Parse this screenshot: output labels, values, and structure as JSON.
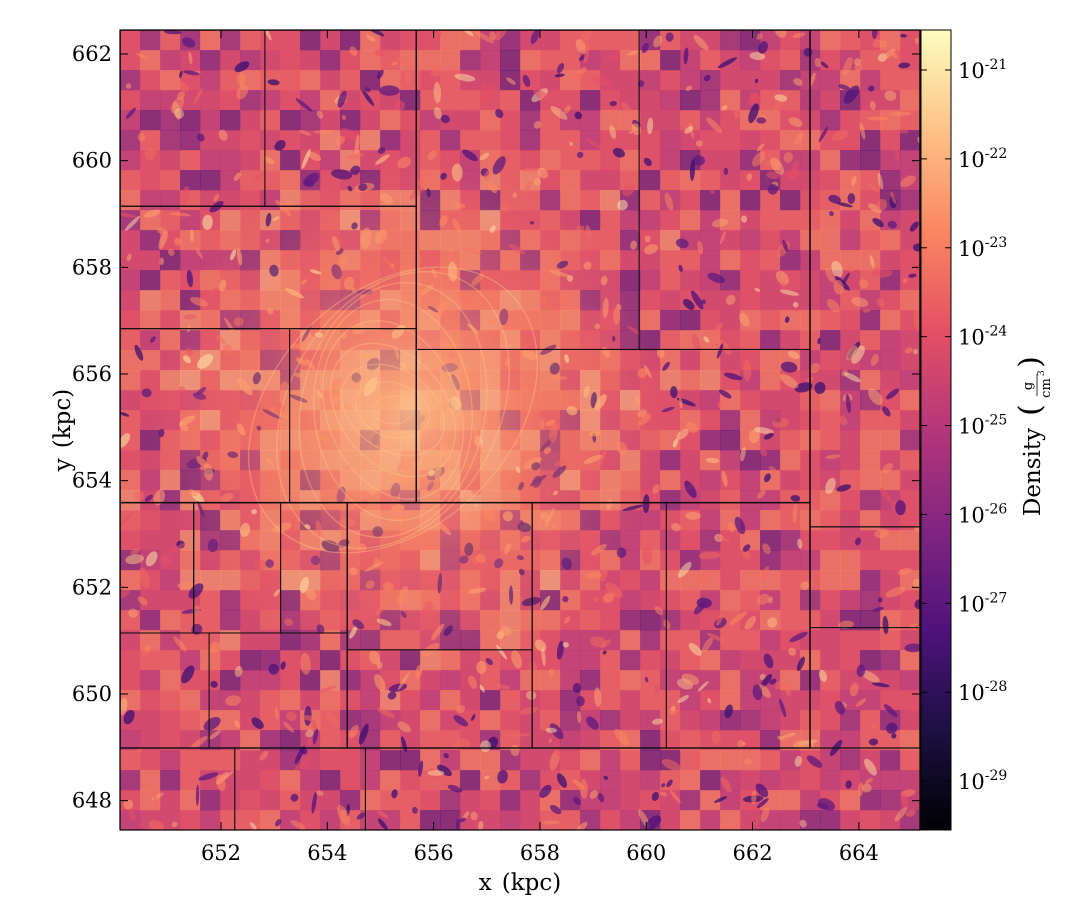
{
  "chart_data": {
    "type": "heatmap",
    "x": {
      "label": "x",
      "unit": "(kpc)",
      "range": [
        650.1,
        665.15
      ],
      "ticks": [
        652,
        654,
        656,
        658,
        660,
        662,
        664
      ]
    },
    "y": {
      "label": "y",
      "unit": "(kpc)",
      "range": [
        647.45,
        662.45
      ],
      "ticks": [
        648,
        650,
        652,
        654,
        656,
        658,
        660,
        662
      ]
    },
    "colorbar": {
      "label": "Density",
      "unit_numerator": "g",
      "unit_denominator": "cm",
      "unit_denominator_exponent": "3",
      "scale": "log",
      "range_exponent": [
        -29.55,
        -20.55
      ],
      "tick_base": "10",
      "tick_exponents": [
        "-21",
        "-22",
        "-23",
        "-24",
        "-25",
        "-26",
        "-27",
        "-28",
        "-29"
      ],
      "colormap": [
        "#000004",
        "#1c1044",
        "#4f127b",
        "#812581",
        "#b5367a",
        "#e55064",
        "#fb8761",
        "#fec287",
        "#fcfdbf"
      ]
    },
    "grid": false,
    "legend": "none"
  }
}
